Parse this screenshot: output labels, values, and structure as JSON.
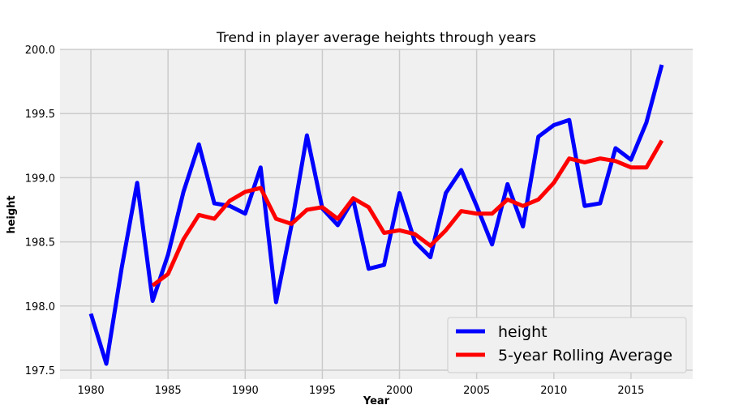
{
  "chart_data": {
    "type": "line",
    "title": "Trend in player average heights through years",
    "xlabel": "Year",
    "ylabel": "height",
    "xlim": [
      1978,
      2019
    ],
    "ylim": [
      197.5,
      200.0
    ],
    "xticks": [
      "1980",
      "1985",
      "1990",
      "1995",
      "2000",
      "2005",
      "2010",
      "2015"
    ],
    "yticks": [
      "197.5",
      "198.0",
      "198.5",
      "199.0",
      "199.5",
      "200.0"
    ],
    "grid": true,
    "legend_position": "bottom-right",
    "x": [
      1980,
      1981,
      1982,
      1983,
      1984,
      1985,
      1986,
      1987,
      1988,
      1989,
      1990,
      1991,
      1992,
      1993,
      1994,
      1995,
      1996,
      1997,
      1998,
      1999,
      2000,
      2001,
      2002,
      2003,
      2004,
      2005,
      2006,
      2007,
      2008,
      2009,
      2010,
      2011,
      2012,
      2013,
      2014,
      2015,
      2016,
      2017
    ],
    "series": [
      {
        "name": "height",
        "color": "#0000ff",
        "values": [
          197.94,
          197.55,
          198.3,
          198.96,
          198.04,
          198.4,
          198.89,
          199.26,
          198.8,
          198.78,
          198.72,
          199.08,
          198.03,
          198.63,
          199.33,
          198.76,
          198.63,
          198.83,
          198.29,
          198.32,
          198.88,
          198.5,
          198.38,
          198.88,
          199.06,
          198.78,
          198.48,
          198.95,
          198.62,
          199.32,
          199.41,
          199.45,
          198.78,
          198.8,
          199.23,
          199.14,
          199.43,
          199.88
        ]
      },
      {
        "name": "5-year Rolling Average",
        "color": "#ff0000",
        "values": [
          null,
          null,
          null,
          null,
          198.16,
          198.25,
          198.52,
          198.71,
          198.68,
          198.82,
          198.89,
          198.92,
          198.68,
          198.64,
          198.75,
          198.77,
          198.68,
          198.84,
          198.77,
          198.57,
          198.59,
          198.56,
          198.47,
          198.59,
          198.74,
          198.72,
          198.72,
          198.83,
          198.78,
          198.83,
          198.96,
          199.15,
          199.12,
          199.15,
          199.13,
          199.08,
          199.08,
          199.29
        ]
      }
    ]
  }
}
